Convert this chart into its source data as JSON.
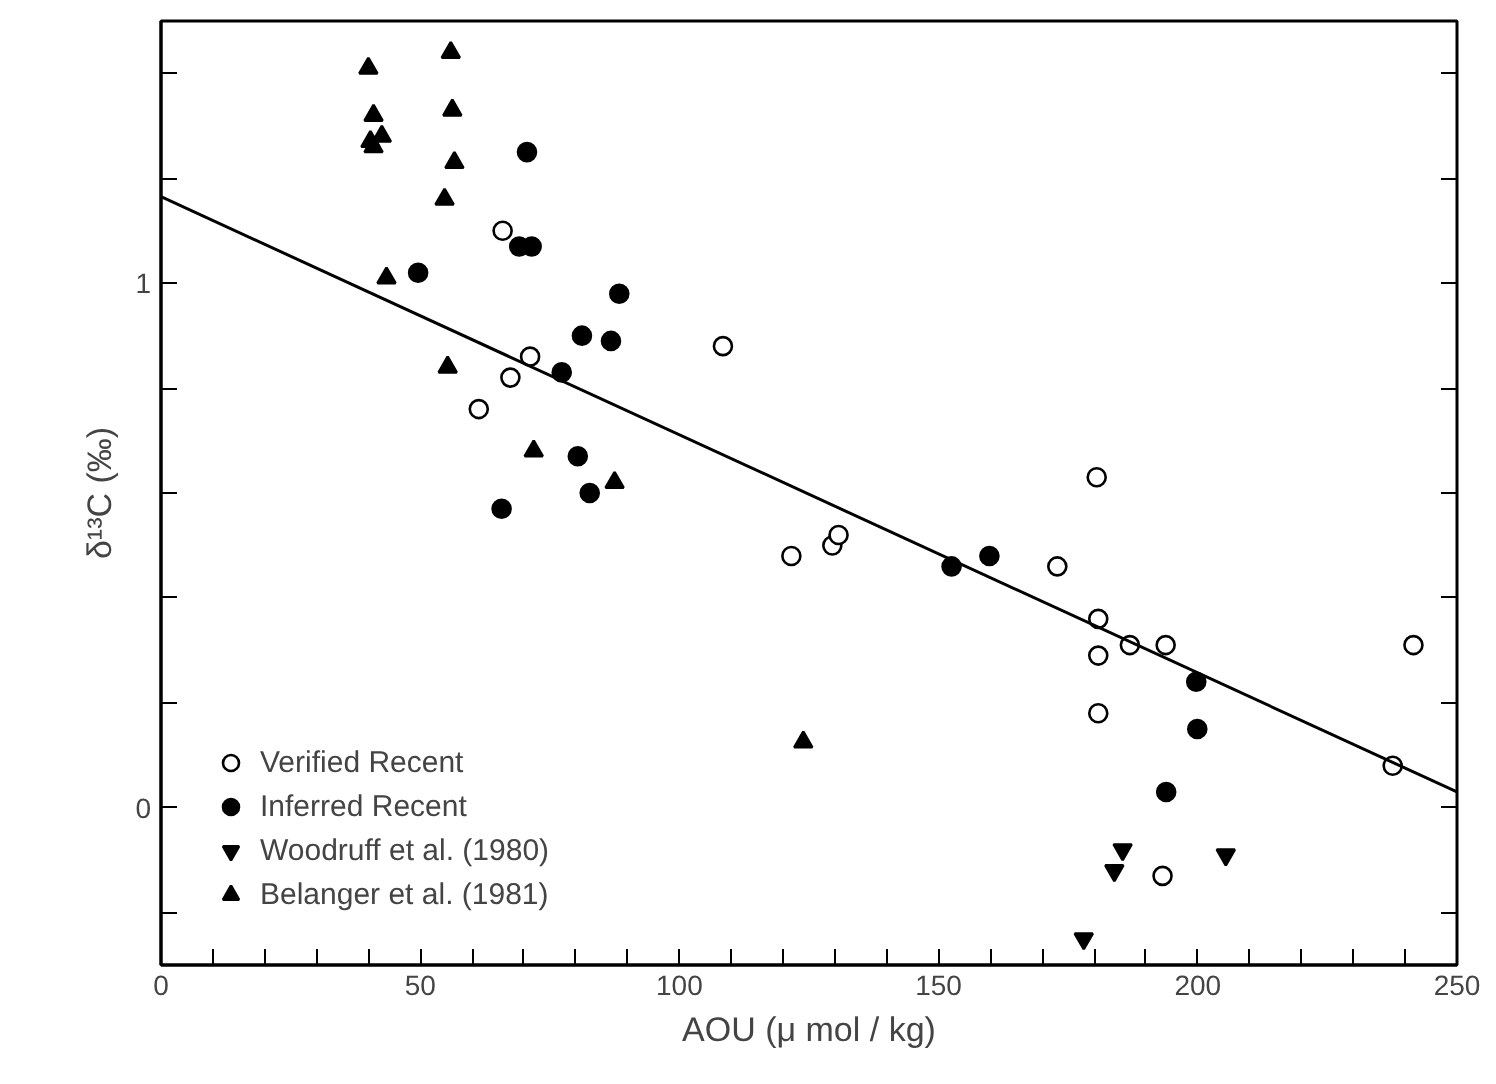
{
  "chart_data": {
    "type": "scatter",
    "xlabel": "AOU (μ mol / kg)",
    "ylabel": "δ¹³C (‰)",
    "xlim": [
      0,
      250
    ],
    "ylim": [
      -0.3,
      1.5
    ],
    "xticks": [
      0,
      {
        "value": 10,
        "label": null
      },
      {
        "value": 20,
        "label": null
      },
      {
        "value": 30,
        "label": null
      },
      {
        "value": 40,
        "label": null
      },
      50,
      {
        "value": 60,
        "label": null
      },
      {
        "value": 70,
        "label": null
      },
      {
        "value": 80,
        "label": null
      },
      {
        "value": 90,
        "label": null
      },
      100,
      {
        "value": 110,
        "label": null
      },
      {
        "value": 120,
        "label": null
      },
      {
        "value": 130,
        "label": null
      },
      {
        "value": 140,
        "label": null
      },
      150,
      {
        "value": 160,
        "label": null
      },
      {
        "value": 170,
        "label": null
      },
      {
        "value": 180,
        "label": null
      },
      {
        "value": 190,
        "label": null
      },
      200,
      {
        "value": 210,
        "label": null
      },
      {
        "value": 220,
        "label": null
      },
      {
        "value": 230,
        "label": null
      },
      {
        "value": 240,
        "label": null
      },
      250
    ],
    "yticks": [
      {
        "value": -0.2,
        "label": null
      },
      0,
      {
        "value": 0.2,
        "label": null
      },
      {
        "value": 0.4,
        "label": null
      },
      {
        "value": 0.6,
        "label": null
      },
      {
        "value": 0.8,
        "label": null
      },
      1,
      {
        "value": 1.2,
        "label": null
      },
      {
        "value": 1.4,
        "label": null
      }
    ],
    "grid": false,
    "legend": "bottom left",
    "series": [
      {
        "name": "Verified Recent",
        "color": "#000000",
        "marker": "circle-open",
        "x": [
          65.9,
          71.2,
          67.4,
          61.3,
          108.4,
          180.5,
          121.6,
          129.5,
          130.7,
          172.9,
          180.8,
          180.8,
          186.9,
          193.8,
          180.8,
          237.6,
          241.6,
          193.2
        ],
        "values": [
          1.1,
          0.86,
          0.82,
          0.76,
          0.88,
          0.63,
          0.48,
          0.5,
          0.52,
          0.46,
          0.36,
          0.29,
          0.31,
          0.31,
          0.18,
          0.08,
          0.31,
          -0.13
        ]
      },
      {
        "name": "Inferred Recent",
        "color": "#000000",
        "marker": "circle",
        "x": [
          70.6,
          49.6,
          69.1,
          71.5,
          88.4,
          81.2,
          86.8,
          77.3,
          80.4,
          82.7,
          65.7,
          152.5,
          159.8,
          199.7,
          199.9,
          193.9
        ],
        "values": [
          1.25,
          1.02,
          1.07,
          1.07,
          0.98,
          0.9,
          0.89,
          0.83,
          0.67,
          0.6,
          0.57,
          0.46,
          0.48,
          0.24,
          0.15,
          0.03
        ]
      },
      {
        "name": "Woodruff et al. (1980)",
        "color": "#000000",
        "marker": "triangle-down",
        "x": [
          185.5,
          183.9,
          205.4,
          178.0
        ],
        "values": [
          -0.08,
          -0.12,
          -0.09,
          -0.25
        ]
      },
      {
        "name": "Belanger et al. (1981)",
        "color": "#000000",
        "marker": "triangle",
        "x": [
          40.0,
          55.9,
          41.0,
          56.2,
          40.4,
          42.6,
          41.0,
          56.6,
          54.7,
          43.5,
          55.3,
          71.9,
          87.5,
          123.9
        ],
        "values": [
          1.41,
          1.44,
          1.32,
          1.33,
          1.27,
          1.28,
          1.26,
          1.23,
          1.16,
          1.01,
          0.84,
          0.68,
          0.62,
          0.125
        ]
      },
      {
        "type": "line",
        "color": "#000000",
        "x": [
          0,
          250
        ],
        "values": [
          1.165,
          0.03
        ]
      }
    ]
  }
}
